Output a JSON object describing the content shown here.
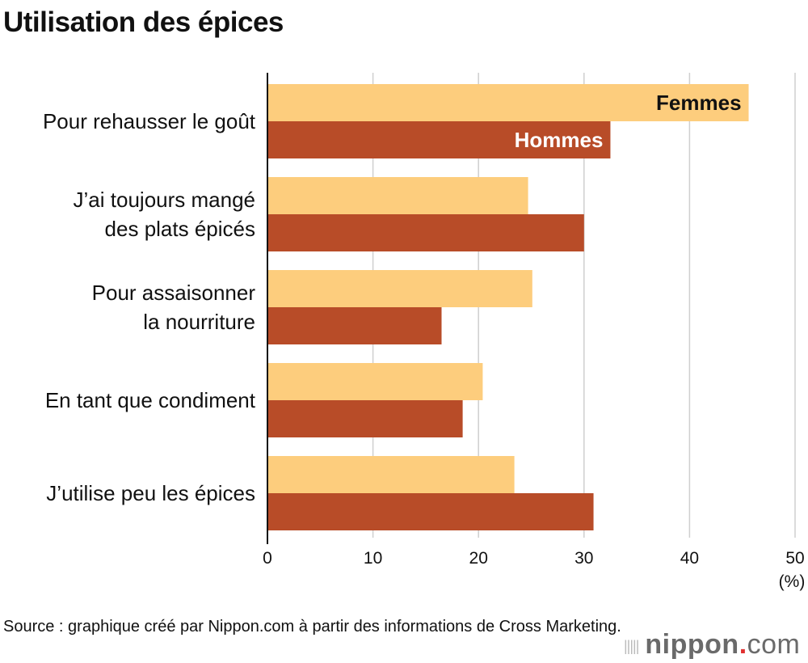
{
  "title": "Utilisation des épices",
  "chart_data": {
    "type": "bar",
    "orientation": "horizontal",
    "categories": [
      [
        "Pour rehausser le goût"
      ],
      [
        "J’ai toujours mangé",
        "des plats épicés"
      ],
      [
        "Pour assaisonner",
        "la nourriture"
      ],
      [
        "En tant que condiment"
      ],
      [
        "J’utilise peu les épices"
      ]
    ],
    "series": [
      {
        "name": "Femmes",
        "color": "#fdcd7d",
        "label_color": "#111111",
        "values": [
          45.6,
          24.7,
          25.1,
          20.4,
          23.4
        ]
      },
      {
        "name": "Hommes",
        "color": "#b84c28",
        "label_color": "#ffffff",
        "values": [
          32.5,
          30.0,
          16.5,
          18.5,
          30.9
        ]
      }
    ],
    "xlim": [
      0,
      50
    ],
    "xticks": [
      0,
      10,
      20,
      30,
      40,
      50
    ],
    "xunit": "(%)",
    "grid": true,
    "legend": "inline on first bars"
  },
  "source": "Source : graphique créé par Nippon.com à partir des informations de Cross Marketing.",
  "logo": {
    "name": "nippon",
    "dot": ".",
    "tld": "com"
  }
}
